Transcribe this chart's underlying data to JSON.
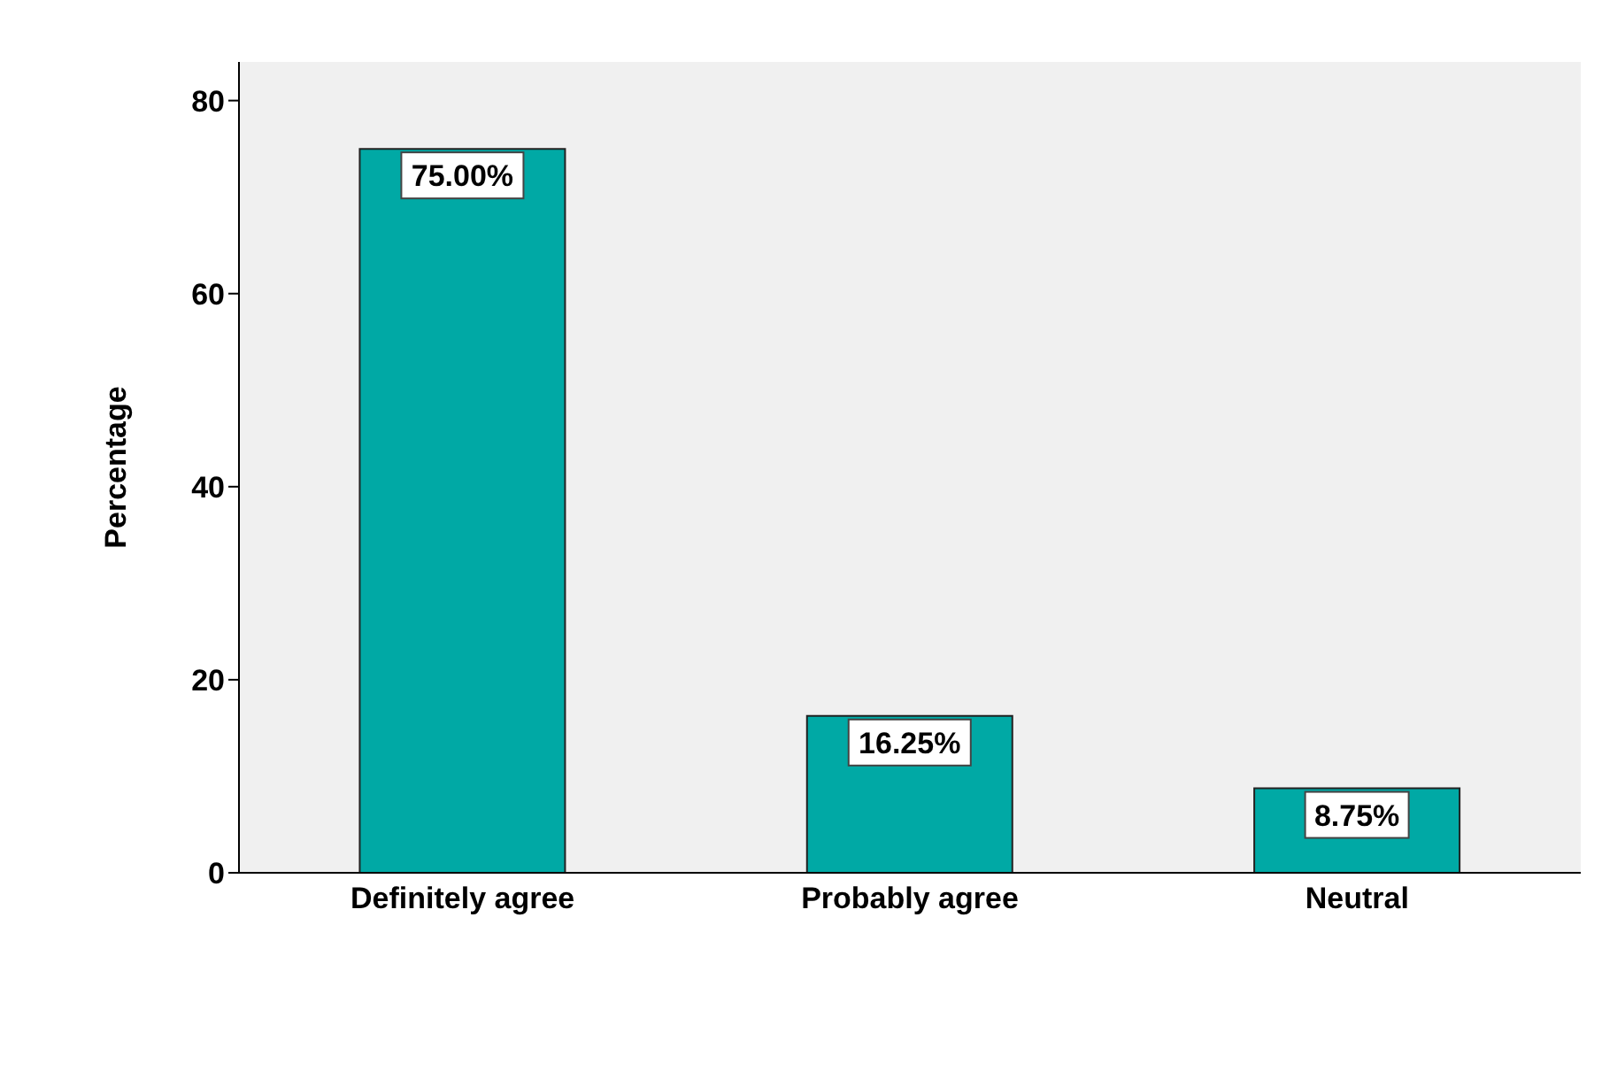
{
  "chart_data": {
    "type": "bar",
    "ylabel": "Percentage",
    "categories": [
      "Definitely agree",
      "Probably agree",
      "Neutral"
    ],
    "values": [
      75,
      16.25,
      8.75
    ],
    "value_labels": [
      "75.00%",
      "16.25%",
      "8.75%"
    ],
    "color": "#00a9a5",
    "ylim": [
      0,
      84
    ],
    "yticks": [
      0,
      20,
      40,
      60,
      80
    ]
  }
}
